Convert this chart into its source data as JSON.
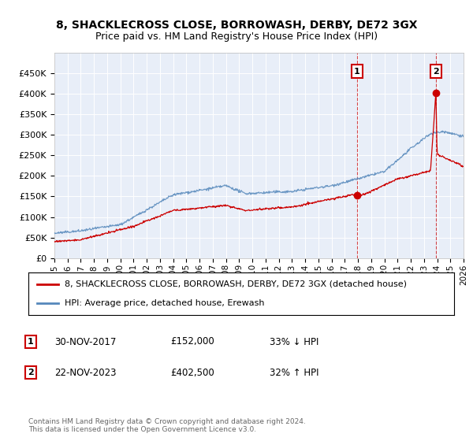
{
  "title": "8, SHACKLECROSS CLOSE, BORROWASH, DERBY, DE72 3GX",
  "subtitle": "Price paid vs. HM Land Registry's House Price Index (HPI)",
  "legend_line1": "8, SHACKLECROSS CLOSE, BORROWASH, DERBY, DE72 3GX (detached house)",
  "legend_line2": "HPI: Average price, detached house, Erewash",
  "footnote": "Contains HM Land Registry data © Crown copyright and database right 2024.\nThis data is licensed under the Open Government Licence v3.0.",
  "annotation1_label": "1",
  "annotation1_date": "30-NOV-2017",
  "annotation1_price": "£152,000",
  "annotation1_hpi": "33% ↓ HPI",
  "annotation2_label": "2",
  "annotation2_date": "22-NOV-2023",
  "annotation2_price": "£402,500",
  "annotation2_hpi": "32% ↑ HPI",
  "red_color": "#cc0000",
  "blue_color": "#5588bb",
  "background_color": "#e8eef8",
  "ylim": [
    0,
    500000
  ],
  "yticks": [
    0,
    50000,
    100000,
    150000,
    200000,
    250000,
    300000,
    350000,
    400000,
    450000
  ],
  "sale1_x": 2017.92,
  "sale1_y": 152000,
  "sale2_x": 2023.9,
  "sale2_y": 402500,
  "vline1_x": 2017.92,
  "vline2_x": 2023.9,
  "xmin": 1995,
  "xmax": 2026
}
